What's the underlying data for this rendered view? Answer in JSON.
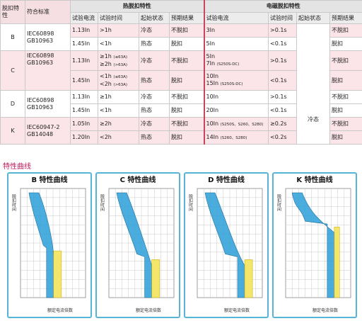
{
  "table": {
    "head1": {
      "trip_characteristic": "脱扣特性",
      "standard": "符合标准",
      "thermal_group": "热脱扣特性",
      "magnetic_group": "电磁脱扣特性"
    },
    "head2": {
      "test_current": "试验电流",
      "test_time": "试验时间",
      "start_state": "起始状态",
      "expected_result": "预期结果",
      "test_current_m": "试验电流",
      "test_time_m": "试验时间",
      "start_state_m": "起始状态",
      "expected_result_m": "预期结果"
    },
    "groups": [
      {
        "curve": "B",
        "standard_l1": "IEC60898",
        "standard_l2": "GB10963",
        "rows": [
          {
            "tc": "1.13In",
            "tt": ">1h",
            "ss": "冷态",
            "er": "不脱扣",
            "mc": "3In",
            "mt": ">0.1s",
            "mr": "不脱扣"
          },
          {
            "tc": "1.45In",
            "tt": "<1h",
            "ss": "热态",
            "er": "脱扣",
            "mc": "5In",
            "mt": "<0.1s",
            "mr": "脱扣"
          }
        ]
      },
      {
        "curve": "C",
        "standard_l1": "IEC60898",
        "standard_l2": "GB10963",
        "rows": [
          {
            "tc": "1.13In",
            "tt1": "≥1h",
            "tt1n": "(≤63A)",
            "tt2": "≥2h",
            "tt2n": "(>63A)",
            "ss": "冷态",
            "er": "不脱扣",
            "mc1": "5In",
            "mc2": "7In",
            "mc2n": "(S250S-DC)",
            "mt": ">0.1s",
            "mr": "不脱扣"
          },
          {
            "tc": "1.45In",
            "tt1": "<1h",
            "tt1n": "(≤63A)",
            "tt2": "<2h",
            "tt2n": "(>63A)",
            "ss": "热态",
            "er": "脱扣",
            "mc1": "10In",
            "mc2": "15In",
            "mc2n": "(S250S-DC)",
            "mt": "<0.1s",
            "mr": "脱扣"
          }
        ]
      },
      {
        "curve": "D",
        "standard_l1": "IEC60898",
        "standard_l2": "GB10963",
        "rows": [
          {
            "tc": "1.13In",
            "tt": "≥1h",
            "ss": "冷态",
            "er": "不脱扣",
            "mc": "10In",
            "mt": ">0.1s",
            "mr": "不脱扣"
          },
          {
            "tc": "1.45In",
            "tt": "<1h",
            "ss": "热态",
            "er": "脱扣",
            "mc": "20In",
            "mt": "<0.1s",
            "mr": "脱扣"
          }
        ]
      },
      {
        "curve": "K",
        "standard_l1": "IEC60947-2",
        "standard_l2": "GB14048",
        "rows": [
          {
            "tc": "1.05In",
            "tt": "≥2h",
            "ss": "冷态",
            "er": "不脱扣",
            "mc": "10In",
            "mcn": "(S250S、S260、S280)",
            "mt": "≥0.2s",
            "mr": "不脱扣"
          },
          {
            "tc": "1.20In",
            "tt": "<2h",
            "ss": "热态",
            "er": "脱扣",
            "mc": "14In",
            "mcn": "(S260、S280)",
            "mt": "<0.2s",
            "mr": "脱扣"
          }
        ]
      }
    ],
    "magnetic_start_state": "冷态"
  },
  "curves": {
    "heading": "特性曲线",
    "y_axis_label": "脱扣时间",
    "x_axis_label": "额定电流倍数",
    "panels": [
      {
        "letter": "B",
        "title_suffix": "特性曲线"
      },
      {
        "letter": "C",
        "title_suffix": "特性曲线"
      },
      {
        "letter": "D",
        "title_suffix": "特性曲线"
      },
      {
        "letter": "K",
        "title_suffix": "特性曲线"
      }
    ],
    "colors": {
      "panel_border": "#56b4d6",
      "band": "#2a9fd8",
      "band_yellow": "#f4e66a",
      "grid": "#c8c8c8",
      "title_red": "#c2185b"
    }
  }
}
